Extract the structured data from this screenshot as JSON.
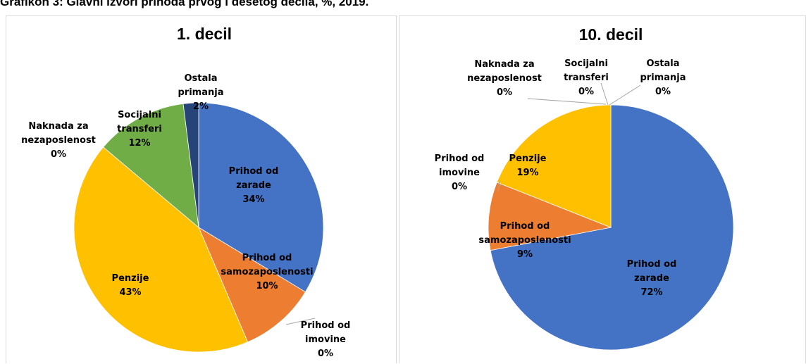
{
  "figure_title": "Grafikon 3: Glavni izvori prihoda prvog i desetog decila, %, 2019.",
  "colors": {
    "zarade": "#4472c4",
    "samozaposlenosti": "#ed7d31",
    "imovine": "#a5a5a5",
    "penzije": "#ffc000",
    "nezaposlenost": "#5b9bd5",
    "socijalni": "#70ad47",
    "ostala": "#264478"
  },
  "chart_data": [
    {
      "type": "pie",
      "title": "1. decil",
      "start_angle_deg": 0,
      "direction": "clockwise",
      "slices": [
        {
          "key": "zarade",
          "label_lines": [
            "Prihod od",
            "zarade"
          ],
          "value": 34,
          "value_label": "34%"
        },
        {
          "key": "samozaposlenosti",
          "label_lines": [
            "Prihod od",
            "samozaposlenosti"
          ],
          "value": 10,
          "value_label": "10%"
        },
        {
          "key": "imovine",
          "label_lines": [
            "Prihod od",
            "imovine"
          ],
          "value": 0,
          "value_label": "0%"
        },
        {
          "key": "penzije",
          "label_lines": [
            "Penzije"
          ],
          "value": 43,
          "value_label": "43%"
        },
        {
          "key": "nezaposlenost",
          "label_lines": [
            "Naknada za",
            "nezaposlenost"
          ],
          "value": 0,
          "value_label": "0%"
        },
        {
          "key": "socijalni",
          "label_lines": [
            "Socijalni",
            "transferi"
          ],
          "value": 12,
          "value_label": "12%"
        },
        {
          "key": "ostala",
          "label_lines": [
            "Ostala",
            "primanja"
          ],
          "value": 2,
          "value_label": "2%"
        }
      ]
    },
    {
      "type": "pie",
      "title": "10. decil",
      "start_angle_deg": 0,
      "direction": "clockwise",
      "slices": [
        {
          "key": "zarade",
          "label_lines": [
            "Prihod od",
            "zarade"
          ],
          "value": 72,
          "value_label": "72%"
        },
        {
          "key": "samozaposlenosti",
          "label_lines": [
            "Prihod od",
            "samozaposlenosti"
          ],
          "value": 9,
          "value_label": "9%"
        },
        {
          "key": "imovine",
          "label_lines": [
            "Prihod od",
            "imovine"
          ],
          "value": 0,
          "value_label": "0%"
        },
        {
          "key": "penzije",
          "label_lines": [
            "Penzije"
          ],
          "value": 19,
          "value_label": "19%"
        },
        {
          "key": "nezaposlenost",
          "label_lines": [
            "Naknada za",
            "nezaposlenost"
          ],
          "value": 0,
          "value_label": "0%"
        },
        {
          "key": "socijalni",
          "label_lines": [
            "Socijalni",
            "transferi"
          ],
          "value": 0,
          "value_label": "0%"
        },
        {
          "key": "ostala",
          "label_lines": [
            "Ostala",
            "primanja"
          ],
          "value": 0,
          "value_label": "0%"
        }
      ]
    }
  ]
}
